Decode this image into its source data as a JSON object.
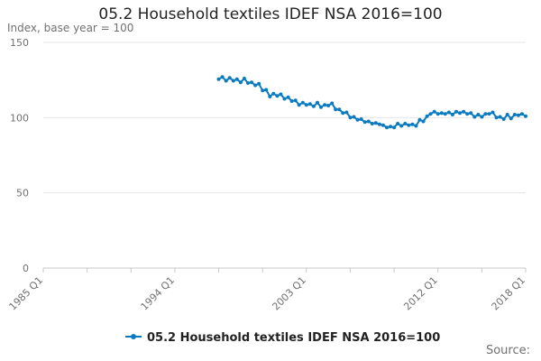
{
  "chart_data": {
    "type": "line",
    "title": "05.2 Household textiles IDEF NSA 2016=100",
    "ylabel": "Index, base year = 100",
    "xlabel": "",
    "ylim": [
      0,
      150
    ],
    "yticks": [
      0,
      50,
      100,
      150
    ],
    "xlim": [
      "1985 Q1",
      "2018 Q1"
    ],
    "xticks": [
      "1985 Q1",
      "1994 Q1",
      "2003 Q1",
      "2012 Q1",
      "2018 Q1"
    ],
    "legend_position": "bottom",
    "grid": true,
    "line_color": "#0b7bc1",
    "series": [
      {
        "name": "05.2 Household textiles IDEF NSA 2016=100",
        "x": [
          "1997 Q1",
          "1997 Q2",
          "1997 Q3",
          "1997 Q4",
          "1998 Q1",
          "1998 Q2",
          "1998 Q3",
          "1998 Q4",
          "1999 Q1",
          "1999 Q2",
          "1999 Q3",
          "1999 Q4",
          "2000 Q1",
          "2000 Q2",
          "2000 Q3",
          "2000 Q4",
          "2001 Q1",
          "2001 Q2",
          "2001 Q3",
          "2001 Q4",
          "2002 Q1",
          "2002 Q2",
          "2002 Q3",
          "2002 Q4",
          "2003 Q1",
          "2003 Q2",
          "2003 Q3",
          "2003 Q4",
          "2004 Q1",
          "2004 Q2",
          "2004 Q3",
          "2004 Q4",
          "2005 Q1",
          "2005 Q2",
          "2005 Q3",
          "2005 Q4",
          "2006 Q1",
          "2006 Q2",
          "2006 Q3",
          "2006 Q4",
          "2007 Q1",
          "2007 Q2",
          "2007 Q3",
          "2007 Q4",
          "2008 Q1",
          "2008 Q2",
          "2008 Q3",
          "2008 Q4",
          "2009 Q1",
          "2009 Q2",
          "2009 Q3",
          "2009 Q4",
          "2010 Q1",
          "2010 Q2",
          "2010 Q3",
          "2010 Q4",
          "2011 Q1",
          "2011 Q2",
          "2011 Q3",
          "2011 Q4",
          "2012 Q1",
          "2012 Q2",
          "2012 Q3",
          "2012 Q4",
          "2013 Q1",
          "2013 Q2",
          "2013 Q3",
          "2013 Q4",
          "2014 Q1",
          "2014 Q2",
          "2014 Q3",
          "2014 Q4",
          "2015 Q1",
          "2015 Q2",
          "2015 Q3",
          "2015 Q4",
          "2016 Q1",
          "2016 Q2",
          "2016 Q3",
          "2016 Q4",
          "2017 Q1",
          "2017 Q2",
          "2017 Q3",
          "2017 Q4",
          "2018 Q1"
        ],
        "values": [
          125.5,
          127,
          124.5,
          126.5,
          124.5,
          125.5,
          123.5,
          126,
          123,
          123.5,
          121.5,
          122.5,
          118,
          118.5,
          114,
          116,
          114.5,
          115.5,
          112.5,
          113.5,
          111,
          111.5,
          108.5,
          110,
          108.5,
          109,
          107.5,
          110,
          107,
          108.5,
          108,
          109.5,
          105.5,
          105.5,
          103,
          103.5,
          100,
          100.5,
          98.5,
          99,
          97,
          97.5,
          96,
          96.5,
          95.5,
          95,
          93.5,
          94,
          93.5,
          96,
          94.5,
          96,
          95,
          95.5,
          94.5,
          98.5,
          97.5,
          101,
          102.5,
          104,
          102.5,
          103,
          102.5,
          103.5,
          102,
          104,
          103,
          104,
          102.5,
          103,
          100.5,
          102,
          100.5,
          102.5,
          102.5,
          103.5,
          100,
          100.5,
          99,
          102,
          99.5,
          102,
          101.5,
          102.5,
          101
        ]
      }
    ]
  },
  "source_label": "Source:"
}
